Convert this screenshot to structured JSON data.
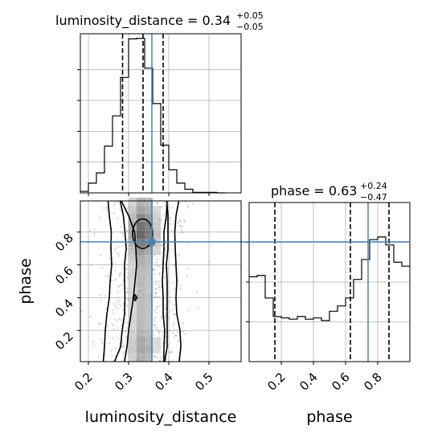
{
  "chart_data": [
    {
      "panel": "luminosity_distance-marginal",
      "type": "histogram-step",
      "title": {
        "text": "luminosity_distance = 0.34",
        "sup": "+0.05",
        "sub": "−0.05"
      },
      "bin_edges": [
        0.18,
        0.2,
        0.22,
        0.24,
        0.26,
        0.28,
        0.3,
        0.32,
        0.34,
        0.36,
        0.38,
        0.4,
        0.42,
        0.44,
        0.46,
        0.48,
        0.5,
        0.52,
        0.54
      ],
      "values": [
        3,
        19,
        39,
        91,
        150,
        225,
        300,
        301,
        243,
        174,
        93,
        45,
        19,
        7,
        1,
        1,
        1,
        0
      ],
      "xlim": [
        0.18,
        0.58
      ],
      "ylim": [
        0,
        310
      ],
      "quantiles": [
        0.285,
        0.336,
        0.386
      ],
      "truth": 0.358,
      "grid": true
    },
    {
      "panel": "phase-marginal",
      "type": "histogram-step",
      "title": {
        "text": "phase = 0.63",
        "sup": "+0.24",
        "sub": "−0.47"
      },
      "bin_edges": [
        0.0,
        0.05,
        0.1,
        0.15,
        0.2,
        0.25,
        0.3,
        0.35,
        0.4,
        0.45,
        0.5,
        0.55,
        0.6,
        0.65,
        0.7,
        0.75,
        0.8,
        0.85,
        0.9,
        0.95,
        1.0
      ],
      "values": [
        64,
        65,
        48,
        34,
        33,
        32,
        34,
        32,
        33,
        31,
        38,
        42,
        48,
        62,
        77,
        92,
        94,
        88,
        75,
        72
      ],
      "xlim": [
        0,
        1
      ],
      "ylim": [
        0,
        120
      ],
      "quantiles": [
        0.16,
        0.63,
        0.87
      ],
      "truth": 0.74,
      "xlabel": "phase",
      "xticks": [
        0.2,
        0.4,
        0.6,
        0.8
      ],
      "grid": true
    },
    {
      "panel": "luminosity_distance-vs-phase",
      "type": "2d-density-contour",
      "xlabel": "luminosity_distance",
      "ylabel": "phase",
      "xlim": [
        0.18,
        0.58
      ],
      "ylim": [
        0.01,
        0.99
      ],
      "xticks": [
        0.2,
        0.3,
        0.4,
        0.5
      ],
      "yticks": [
        0.2,
        0.4,
        0.6,
        0.8
      ],
      "truth": {
        "x": 0.358,
        "y": 0.74
      },
      "contour_levels": [
        {
          "name": "outer",
          "x_pairs": [
            [
              0.237,
              0.426
            ],
            [
              0.24,
              0.43
            ],
            [
              0.242,
              0.428
            ],
            [
              0.246,
              0.42
            ],
            [
              0.252,
              0.418
            ],
            [
              0.254,
              0.42
            ],
            [
              0.258,
              0.418
            ],
            [
              0.256,
              0.416
            ],
            [
              0.257,
              0.415
            ],
            [
              0.252,
              0.418
            ],
            [
              0.249,
              0.425
            ]
          ]
        },
        {
          "name": "middle",
          "x_pairs": [
            [
              0.265,
              0.39
            ],
            [
              0.28,
              0.396
            ],
            [
              0.284,
              0.396
            ],
            [
              0.29,
              0.396
            ],
            [
              0.291,
              0.396
            ],
            [
              0.29,
              0.396
            ],
            [
              0.29,
              0.394
            ],
            [
              0.294,
              0.398
            ],
            [
              0.291,
              0.398
            ],
            [
              0.287,
              0.398
            ],
            [
              0.279,
              0.395
            ]
          ]
        },
        {
          "name": "inner",
          "x_pairs": [
            [
              0.29,
              0.388
            ],
            [
              0.296,
              0.388
            ],
            [
              0.3,
              0.39
            ],
            [
              0.306,
              0.386
            ],
            [
              0.312,
              0.386
            ],
            [
              0.316,
              0.384
            ],
            [
              0.32,
              0.386
            ],
            [
              0.318,
              0.388
            ],
            [
              0.315,
              0.388
            ],
            [
              0.3,
              0.394
            ],
            [
              0.282,
              0.396
            ]
          ]
        }
      ],
      "contour_ys": [
        0.01,
        0.1,
        0.2,
        0.3,
        0.4,
        0.5,
        0.6,
        0.7,
        0.8,
        0.9,
        0.99
      ],
      "grid": true
    }
  ],
  "colors": {
    "truth": "#4682b4",
    "hist": "#000000",
    "grid": "#b0b0b0",
    "samples": "#9a9a9a"
  }
}
